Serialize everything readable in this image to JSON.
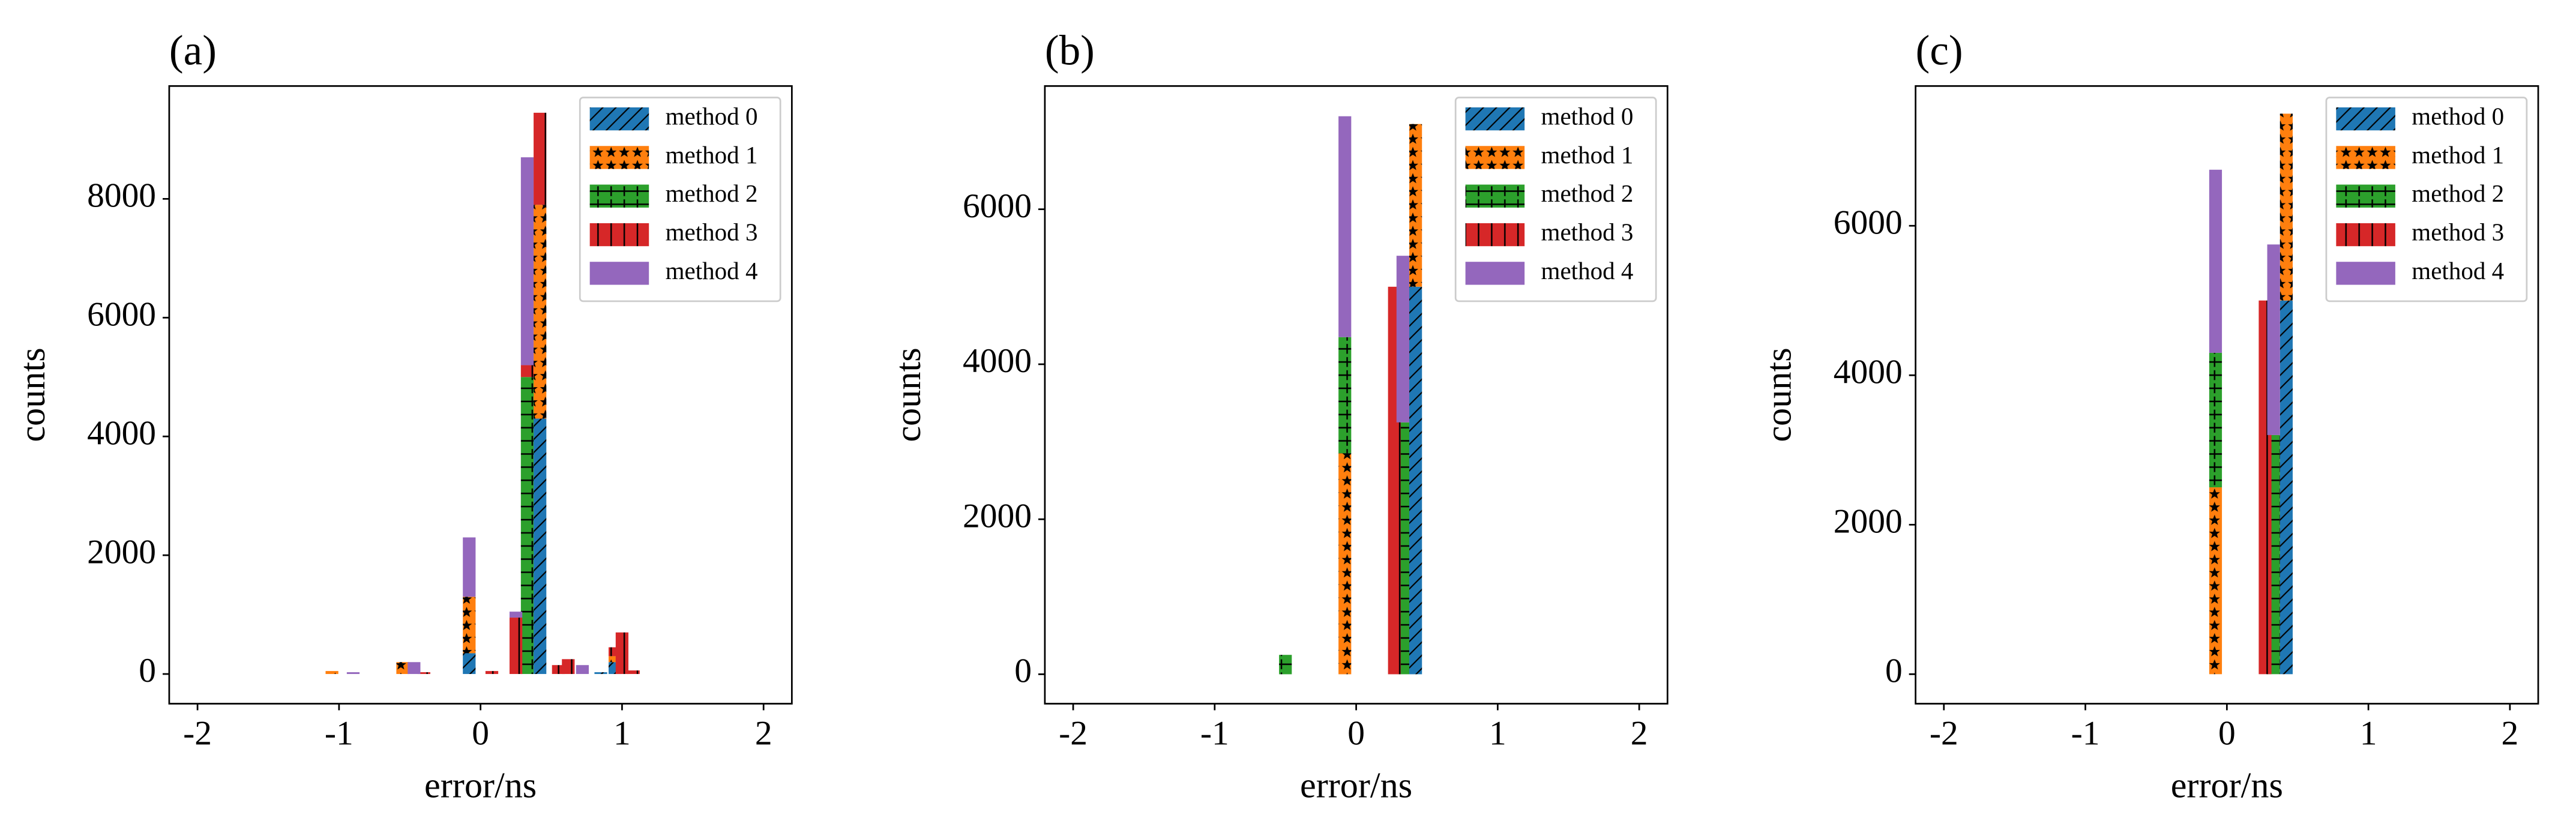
{
  "chart_data": [
    {
      "type": "bar",
      "title": "(a)",
      "xlabel": "error/ns",
      "ylabel": "counts",
      "stacked": true,
      "legend": "upper right",
      "x": [
        -1.05,
        -0.9,
        -0.55,
        -0.47,
        -0.4,
        -0.08,
        0.08,
        0.25,
        0.33,
        0.42,
        0.55,
        0.62,
        0.72,
        0.85,
        0.95,
        1.0,
        1.08
      ],
      "series": [
        {
          "name": "method 0",
          "color": "#1f77b4",
          "hatch": "/",
          "values": [
            0,
            0,
            0,
            0,
            0,
            350,
            0,
            0,
            0,
            4300,
            0,
            0,
            0,
            30,
            200,
            0,
            0
          ]
        },
        {
          "name": "method 1",
          "color": "#ff7f0e",
          "hatch": "*",
          "values": [
            50,
            0,
            200,
            0,
            0,
            950,
            0,
            0,
            0,
            3600,
            0,
            0,
            0,
            0,
            100,
            0,
            0
          ]
        },
        {
          "name": "method 2",
          "color": "#2ca02c",
          "hatch": "+",
          "values": [
            0,
            0,
            0,
            0,
            0,
            0,
            0,
            0,
            5000,
            0,
            0,
            0,
            0,
            0,
            0,
            0,
            0
          ]
        },
        {
          "name": "method 3",
          "color": "#d62728",
          "hatch": "|",
          "values": [
            0,
            0,
            0,
            0,
            30,
            0,
            50,
            950,
            200,
            1550,
            150,
            250,
            0,
            0,
            150,
            700,
            60
          ]
        },
        {
          "name": "method 4",
          "color": "#9467bd",
          "hatch": "",
          "values": [
            0,
            30,
            0,
            200,
            0,
            1000,
            0,
            100,
            3500,
            0,
            0,
            0,
            150,
            0,
            0,
            0,
            0
          ]
        }
      ],
      "xlim": [
        -2.2,
        2.2
      ],
      "xticks": [
        -2,
        -1,
        0,
        1,
        2
      ],
      "ylim": [
        -500,
        9900
      ],
      "yticks": [
        0,
        2000,
        4000,
        6000,
        8000
      ]
    },
    {
      "type": "bar",
      "title": "(b)",
      "xlabel": "error/ns",
      "ylabel": "counts",
      "stacked": true,
      "legend": "upper right",
      "x": [
        -0.5,
        -0.08,
        0.27,
        0.33,
        0.42
      ],
      "series": [
        {
          "name": "method 0",
          "color": "#1f77b4",
          "hatch": "/",
          "values": [
            0,
            0,
            0,
            0,
            5000
          ]
        },
        {
          "name": "method 1",
          "color": "#ff7f0e",
          "hatch": "*",
          "values": [
            0,
            2850,
            0,
            0,
            2100
          ]
        },
        {
          "name": "method 2",
          "color": "#2ca02c",
          "hatch": "+",
          "values": [
            250,
            1500,
            0,
            3250,
            0
          ]
        },
        {
          "name": "method 3",
          "color": "#d62728",
          "hatch": "|",
          "values": [
            0,
            0,
            5000,
            0,
            0
          ]
        },
        {
          "name": "method 4",
          "color": "#9467bd",
          "hatch": "",
          "values": [
            0,
            2850,
            0,
            2150,
            0
          ]
        }
      ],
      "xlim": [
        -2.2,
        2.2
      ],
      "xticks": [
        -2,
        -1,
        0,
        1,
        2
      ],
      "ylim": [
        -380,
        7590
      ],
      "yticks": [
        0,
        2000,
        4000,
        6000
      ]
    },
    {
      "type": "bar",
      "title": "(c)",
      "xlabel": "error/ns",
      "ylabel": "counts",
      "stacked": true,
      "legend": "upper right",
      "x": [
        -0.08,
        0.27,
        0.33,
        0.42
      ],
      "series": [
        {
          "name": "method 0",
          "color": "#1f77b4",
          "hatch": "/",
          "values": [
            0,
            0,
            0,
            5000
          ]
        },
        {
          "name": "method 1",
          "color": "#ff7f0e",
          "hatch": "*",
          "values": [
            2500,
            0,
            0,
            2500
          ]
        },
        {
          "name": "method 2",
          "color": "#2ca02c",
          "hatch": "+",
          "values": [
            1800,
            0,
            3200,
            0
          ]
        },
        {
          "name": "method 3",
          "color": "#d62728",
          "hatch": "|",
          "values": [
            0,
            5000,
            0,
            0
          ]
        },
        {
          "name": "method 4",
          "color": "#9467bd",
          "hatch": "",
          "values": [
            2450,
            0,
            2550,
            0
          ]
        }
      ],
      "xlim": [
        -2.2,
        2.2
      ],
      "xticks": [
        -2,
        -1,
        0,
        1,
        2
      ],
      "ylim": [
        -395,
        7870
      ],
      "yticks": [
        0,
        2000,
        4000,
        6000
      ]
    }
  ]
}
